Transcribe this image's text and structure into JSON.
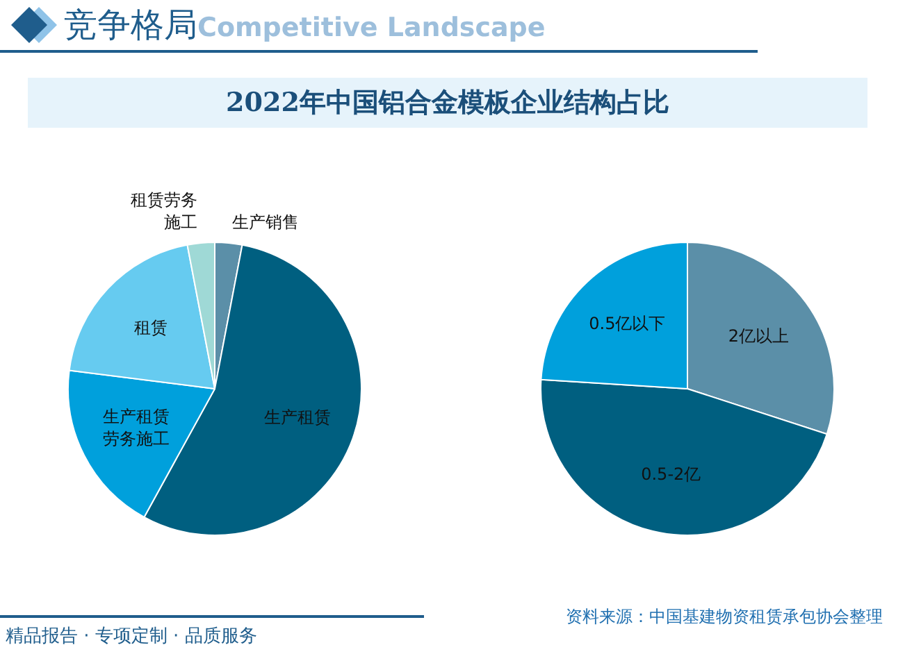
{
  "chart_data": [
    {
      "type": "pie",
      "title": "2022年中国铝合金模板企业结构占比",
      "categories": [
        "生产销售",
        "生产租赁",
        "生产租赁劳务施工",
        "租赁",
        "租赁劳务施工"
      ],
      "values": [
        3,
        55,
        19,
        20,
        3
      ],
      "colors": [
        "#5b8fa8",
        "#005f80",
        "#00a0dc",
        "#66cbf0",
        "#9fd9d6"
      ],
      "annotations": [
        "竞争格局",
        "Competitive Landscape",
        "资料来源：中国基建物资租赁承包协会整理",
        "精品报告 · 专项定制 · 品质服务"
      ]
    },
    {
      "type": "pie",
      "categories": [
        "2亿以上",
        "0.5-2亿",
        "0.5亿以下"
      ],
      "values": [
        30,
        46,
        24
      ],
      "colors": [
        "#5b8fa8",
        "#005f80",
        "#00a0dc"
      ]
    }
  ]
}
